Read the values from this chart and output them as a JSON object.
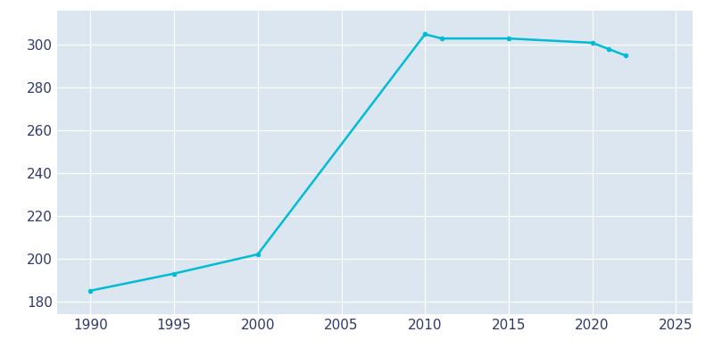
{
  "years": [
    1990,
    1995,
    2000,
    2010,
    2011,
    2015,
    2020,
    2021,
    2022
  ],
  "population": [
    185,
    193,
    202,
    305,
    303,
    303,
    301,
    298,
    295
  ],
  "line_color": "#00BCD4",
  "marker_style": "o",
  "marker_size": 3,
  "line_width": 1.8,
  "plot_bg_color": "#DCE6F0",
  "fig_bg_color": "#FFFFFF",
  "grid_color": "#FFFFFF",
  "xlabel": "",
  "ylabel": "",
  "xlim": [
    1988,
    2026
  ],
  "ylim": [
    174,
    316
  ],
  "xticks": [
    1990,
    1995,
    2000,
    2005,
    2010,
    2015,
    2020,
    2025
  ],
  "yticks": [
    180,
    200,
    220,
    240,
    260,
    280,
    300
  ],
  "tick_label_color": "#2E3A6E",
  "tick_fontsize": 11
}
